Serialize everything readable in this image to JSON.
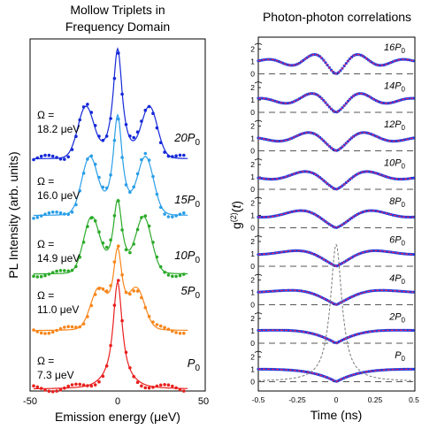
{
  "left": {
    "title": [
      "Mollow Triplets in",
      "Frequency Domain"
    ],
    "xlabel": "Emission energy (μeV)",
    "ylabel": "PL Intensity (arb. units)",
    "xticks": [
      "-50",
      "0",
      "50"
    ]
  },
  "right": {
    "title": "Photon-photon correlations",
    "xlabel": "Time (ns)",
    "ylabel": "g(2)(t)",
    "xticks": [
      "-0.5",
      "-0.25",
      "0",
      "0.25",
      "0.5"
    ],
    "yticks": [
      "0",
      "1",
      "2"
    ]
  },
  "chart_data": [
    {
      "type": "line",
      "title": "Mollow Triplets in Frequency Domain",
      "xlabel": "Emission energy (μeV)",
      "ylabel": "PL Intensity (arb. units)",
      "xlim": [
        -50,
        50
      ],
      "series": [
        {
          "name": "P0",
          "power_label": "P",
          "power_sub": "0",
          "omega_label": "Ω =",
          "omega_value": "7.3 μeV",
          "color": "#e8201e",
          "splitting": 7.3,
          "side_height": 0.02,
          "center_height": 1.0
        },
        {
          "name": "5P0",
          "power_label": "5P",
          "power_sub": "0",
          "omega_label": "Ω =",
          "omega_value": "11.0 μeV",
          "color": "#f7851a",
          "splitting": 11.0,
          "side_height": 0.35,
          "center_height": 0.75
        },
        {
          "name": "10P0",
          "power_label": "10P",
          "power_sub": "0",
          "omega_label": "Ω =",
          "omega_value": "14.9 μeV",
          "color": "#2caa2a",
          "splitting": 14.9,
          "side_height": 0.55,
          "center_height": 0.75
        },
        {
          "name": "15P0",
          "power_label": "15P",
          "power_sub": "0",
          "omega_label": "Ω =",
          "omega_value": "16.0 μeV",
          "color": "#2a9ee8",
          "splitting": 16.0,
          "side_height": 0.55,
          "center_height": 1.0
        },
        {
          "name": "20P0",
          "power_label": "20P",
          "power_sub": "0",
          "omega_label": "Ω =",
          "omega_value": "18.2 μeV",
          "color": "#1428d8",
          "splitting": 18.2,
          "side_height": 0.45,
          "center_height": 1.0
        }
      ]
    },
    {
      "type": "line",
      "title": "Photon-photon correlations",
      "xlabel": "Time (ns)",
      "ylabel": "g(2)(t)",
      "xlim": [
        -0.5,
        0.5
      ],
      "ylim": [
        0,
        2
      ],
      "data_color": "#1f3fe0",
      "fit_color": "#e0206a",
      "series": [
        {
          "name": "16P0",
          "power_label": "16P",
          "power_sub": "0",
          "rabi_freq": 3.4,
          "tau": 0.25
        },
        {
          "name": "14P0",
          "power_label": "14P",
          "power_sub": "0",
          "rabi_freq": 3.0,
          "tau": 0.25
        },
        {
          "name": "12P0",
          "power_label": "12P",
          "power_sub": "0",
          "rabi_freq": 2.6,
          "tau": 0.25
        },
        {
          "name": "10P0",
          "power_label": "10P",
          "power_sub": "0",
          "rabi_freq": 2.3,
          "tau": 0.25
        },
        {
          "name": "8P0",
          "power_label": "8P",
          "power_sub": "0",
          "rabi_freq": 2.0,
          "tau": 0.25
        },
        {
          "name": "6P0",
          "power_label": "6P",
          "power_sub": "0",
          "rabi_freq": 1.7,
          "tau": 0.2
        },
        {
          "name": "4P0",
          "power_label": "4P",
          "power_sub": "0",
          "rabi_freq": 1.4,
          "tau": 0.18
        },
        {
          "name": "2P0",
          "power_label": "2P",
          "power_sub": "0",
          "rabi_freq": 0.95,
          "tau": 0.15
        },
        {
          "name": "P0",
          "power_label": "P",
          "power_sub": "0",
          "rabi_freq": 0.6,
          "tau": 0.15
        }
      ]
    }
  ]
}
